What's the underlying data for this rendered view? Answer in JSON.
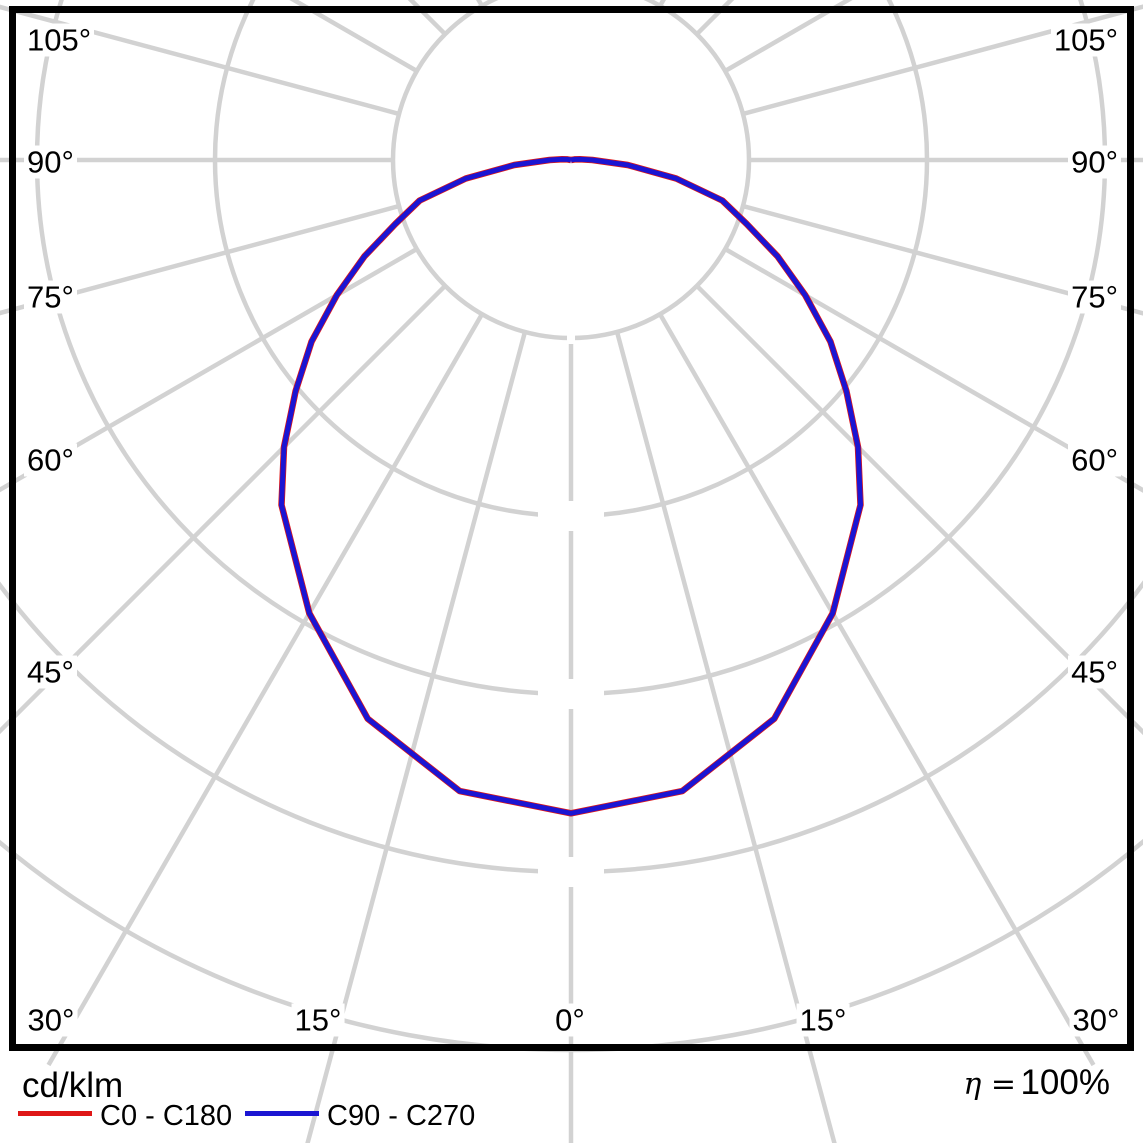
{
  "chart_data": {
    "type": "polar",
    "subtype": "photometric-light-distribution",
    "unit_label": "cd/klm",
    "efficiency": {
      "symbol_text": "η =",
      "value_text": "100%"
    },
    "grid": {
      "ring_count": 5,
      "radial_line_step_deg": 15,
      "ring_values_labeled": false,
      "grid_color": "#d2d2d2",
      "frame_color": "#000000",
      "background": "#ffffff"
    },
    "angle_labels": {
      "left": [
        "105°",
        "90°",
        "75°",
        "60°",
        "45°"
      ],
      "left_deg": [
        105,
        90,
        75,
        60,
        45
      ],
      "right": [
        "105°",
        "90°",
        "75°",
        "60°",
        "45°"
      ],
      "right_deg": [
        105,
        90,
        75,
        60,
        45
      ],
      "bottom": [
        "30°",
        "15°",
        "0°",
        "15°",
        "30°"
      ],
      "bottom_deg": [
        -30,
        -15,
        0,
        15,
        30
      ]
    },
    "legend": [
      {
        "label": "C0 - C180",
        "color": "#df1717"
      },
      {
        "label": "C90 - C270",
        "color": "#1b15d2"
      }
    ],
    "series": [
      {
        "name": "C0 - C180",
        "color": "#df1717",
        "symmetric": true,
        "gamma_deg": [
          0,
          10,
          20,
          30,
          40,
          45,
          50,
          55,
          60,
          65,
          70,
          75,
          80,
          85,
          90,
          95,
          100,
          105
        ],
        "r_rings": [
          3.67,
          3.6,
          3.34,
          2.94,
          2.53,
          2.28,
          2.02,
          1.78,
          1.52,
          1.28,
          1.05,
          0.88,
          0.6,
          0.32,
          0.12,
          0.05,
          0.02,
          0.0
        ]
      },
      {
        "name": "C90 - C270",
        "color": "#1b15d2",
        "symmetric": true,
        "gamma_deg": [
          0,
          10,
          20,
          30,
          40,
          45,
          50,
          55,
          60,
          65,
          70,
          75,
          80,
          85,
          90,
          95,
          100,
          105
        ],
        "r_rings": [
          3.67,
          3.6,
          3.34,
          2.94,
          2.53,
          2.28,
          2.02,
          1.78,
          1.52,
          1.28,
          1.05,
          0.88,
          0.6,
          0.32,
          0.12,
          0.05,
          0.02,
          0.0
        ]
      }
    ]
  }
}
